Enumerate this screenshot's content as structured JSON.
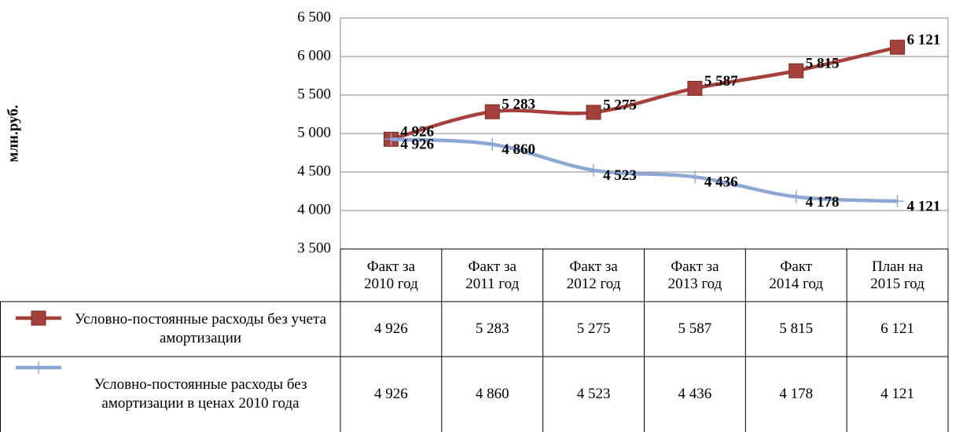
{
  "chart_data": {
    "type": "line",
    "y_axis_label": "млн.руб.",
    "categories": [
      "Факт за\n2010 год",
      "Факт за\n2011 год",
      "Факт за\n2012 год",
      "Факт за\n2013 год",
      "Факт\n2014 год",
      "План на\n2015 год"
    ],
    "series": [
      {
        "name": "Условно-постоянные расходы без учета амортизации",
        "color": "#a6403b",
        "marker": "square",
        "values": [
          4926,
          5283,
          5275,
          5587,
          5815,
          6121
        ],
        "value_labels": [
          "4 926",
          "5 283",
          "5 275",
          "5 587",
          "5 815",
          "6 121"
        ]
      },
      {
        "name": "Условно-постоянные расходы без амортизации в ценах 2010 года",
        "color": "#8ea8d6",
        "marker": "plus",
        "values": [
          4926,
          4860,
          4523,
          4436,
          4178,
          4121
        ],
        "value_labels": [
          "4 926",
          "4 860",
          "4 523",
          "4 436",
          "4 178",
          "4 121"
        ]
      }
    ],
    "ylim": [
      3500,
      6500
    ],
    "yticks": [
      {
        "value": 3500,
        "label": "3 500"
      },
      {
        "value": 4000,
        "label": "4 000"
      },
      {
        "value": 4500,
        "label": "4 500"
      },
      {
        "value": 5000,
        "label": "5 000"
      },
      {
        "value": 5500,
        "label": "5 500"
      },
      {
        "value": 6000,
        "label": "6 000"
      },
      {
        "value": 6500,
        "label": "6 500"
      }
    ],
    "grid": true,
    "data_table": true
  }
}
